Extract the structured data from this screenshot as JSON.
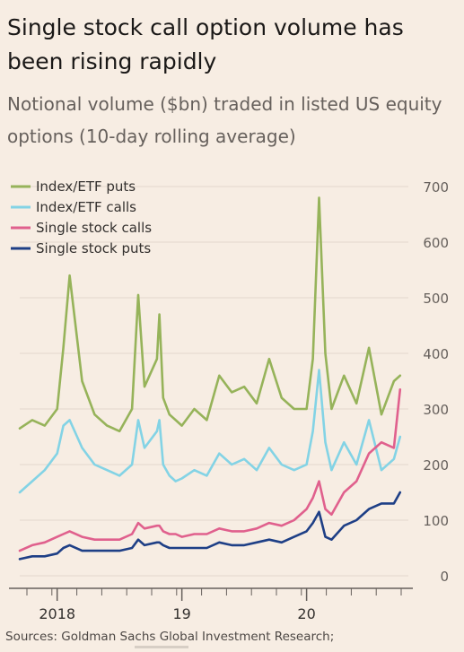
{
  "header": {
    "title": "Single stock call option volume has been rising rapidly",
    "subtitle": "Notional volume ($bn) traded in listed US equity options (10-day rolling average)"
  },
  "source": "Sources: Goldman Sachs Global Investment Research;",
  "chart_data": {
    "type": "line",
    "title": "Single stock call option volume has been rising rapidly",
    "subtitle": "Notional volume ($bn) traded in listed US equity options (10-day rolling average)",
    "xlabel": "",
    "ylabel": "",
    "ylim": [
      0,
      700
    ],
    "yticks": [
      0,
      100,
      200,
      300,
      400,
      500,
      600,
      700
    ],
    "xticks": [
      "2018",
      "19",
      "20"
    ],
    "grid": "horizontal",
    "legend_position": "top-left",
    "x": [
      2017.7,
      2017.8,
      2017.9,
      2018.0,
      2018.05,
      2018.1,
      2018.2,
      2018.3,
      2018.4,
      2018.5,
      2018.6,
      2018.65,
      2018.7,
      2018.8,
      2018.82,
      2018.85,
      2018.9,
      2018.95,
      2019.0,
      2019.1,
      2019.2,
      2019.3,
      2019.4,
      2019.5,
      2019.6,
      2019.7,
      2019.8,
      2019.9,
      2020.0,
      2020.05,
      2020.1,
      2020.15,
      2020.2,
      2020.3,
      2020.4,
      2020.5,
      2020.6,
      2020.7,
      2020.75
    ],
    "series": [
      {
        "name": "Index/ETF puts",
        "color": "#96b35a",
        "values": [
          265,
          280,
          270,
          300,
          410,
          540,
          350,
          290,
          270,
          260,
          300,
          505,
          340,
          390,
          470,
          320,
          290,
          280,
          270,
          300,
          280,
          360,
          330,
          340,
          310,
          390,
          320,
          300,
          300,
          390,
          680,
          400,
          300,
          360,
          310,
          410,
          290,
          350,
          360
        ]
      },
      {
        "name": "Index/ETF calls",
        "color": "#83d3e5",
        "values": [
          150,
          170,
          190,
          220,
          270,
          280,
          230,
          200,
          190,
          180,
          200,
          280,
          230,
          260,
          280,
          200,
          180,
          170,
          175,
          190,
          180,
          220,
          200,
          210,
          190,
          230,
          200,
          190,
          200,
          260,
          370,
          240,
          190,
          240,
          200,
          280,
          190,
          210,
          250
        ]
      },
      {
        "name": "Single stock calls",
        "color": "#e0608d",
        "values": [
          45,
          55,
          60,
          70,
          75,
          80,
          70,
          65,
          65,
          65,
          75,
          95,
          85,
          90,
          90,
          80,
          75,
          75,
          70,
          75,
          75,
          85,
          80,
          80,
          85,
          95,
          90,
          100,
          120,
          140,
          170,
          120,
          110,
          150,
          170,
          220,
          240,
          230,
          335
        ]
      },
      {
        "name": "Single stock puts",
        "color": "#1e3f86",
        "values": [
          30,
          35,
          35,
          40,
          50,
          55,
          45,
          45,
          45,
          45,
          50,
          65,
          55,
          60,
          60,
          55,
          50,
          50,
          50,
          50,
          50,
          60,
          55,
          55,
          60,
          65,
          60,
          70,
          80,
          95,
          115,
          70,
          65,
          90,
          100,
          120,
          130,
          130,
          150
        ]
      }
    ]
  }
}
